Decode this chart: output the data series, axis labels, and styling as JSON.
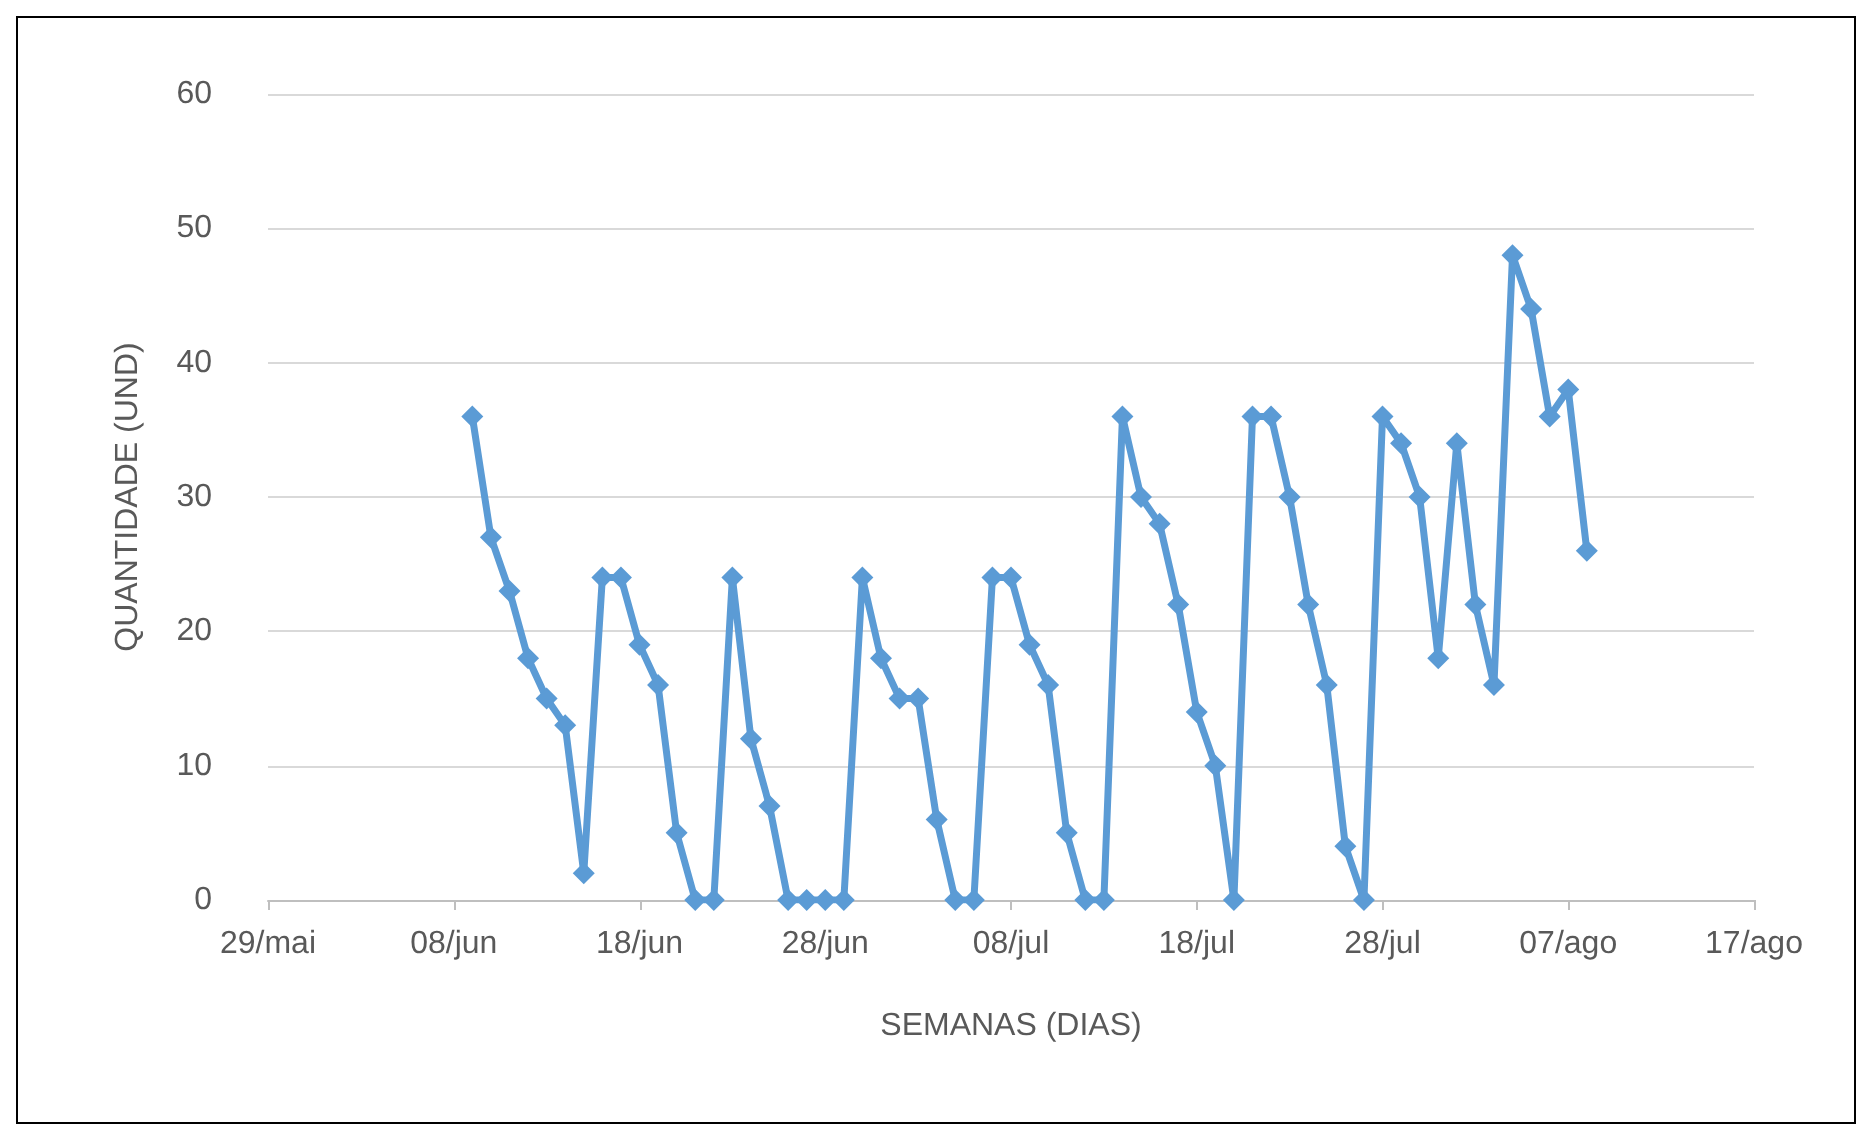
{
  "chart_data": {
    "type": "line",
    "xlabel": "SEMANAS (DIAS)",
    "ylabel": "QUANTIDADE (UND)",
    "x": [
      "--06-09",
      "--06-10",
      "--06-11",
      "--06-12",
      "--06-13",
      "--06-14",
      "--06-15",
      "--06-16",
      "--06-17",
      "--06-18",
      "--06-19",
      "--06-20",
      "--06-21",
      "--06-22",
      "--06-23",
      "--06-24",
      "--06-25",
      "--06-26",
      "--06-27",
      "--06-28",
      "--06-29",
      "--06-30",
      "--07-01",
      "--07-02",
      "--07-03",
      "--07-04",
      "--07-05",
      "--07-06",
      "--07-07",
      "--07-08",
      "--07-09",
      "--07-10",
      "--07-11",
      "--07-12",
      "--07-13",
      "--07-14",
      "--07-15",
      "--07-16",
      "--07-17",
      "--07-18",
      "--07-19",
      "--07-20",
      "--07-21",
      "--07-22",
      "--07-23",
      "--07-24",
      "--07-25",
      "--07-26",
      "--07-27",
      "--07-28",
      "--07-29",
      "--07-30",
      "--07-31",
      "--08-01",
      "--08-02",
      "--08-03",
      "--08-04",
      "--08-05",
      "--08-06",
      "--08-07",
      "--08-08"
    ],
    "series": [
      {
        "color": "#5b9bd5",
        "values": [
          36,
          27,
          23,
          18,
          15,
          13,
          2,
          24,
          24,
          19,
          16,
          5,
          0,
          0,
          24,
          12,
          7,
          0,
          0,
          0,
          0,
          24,
          18,
          15,
          15,
          6,
          0,
          0,
          24,
          24,
          19,
          16,
          5,
          0,
          0,
          36,
          30,
          28,
          22,
          14,
          10,
          0,
          36,
          36,
          30,
          22,
          16,
          4,
          0,
          36,
          34,
          30,
          18,
          34,
          22,
          16,
          48,
          44,
          36,
          38,
          26
        ]
      }
    ],
    "xlim": [
      "--05-29",
      "--08-17"
    ],
    "xticks": [
      {
        "value": "--05-29",
        "label": "29/mai"
      },
      {
        "value": "--06-08",
        "label": "08/jun"
      },
      {
        "value": "--06-18",
        "label": "18/jun"
      },
      {
        "value": "--06-28",
        "label": "28/jun"
      },
      {
        "value": "--07-08",
        "label": "08/jul"
      },
      {
        "value": "--07-18",
        "label": "18/jul"
      },
      {
        "value": "--07-28",
        "label": "28/jul"
      },
      {
        "value": "--08-07",
        "label": "07/ago"
      },
      {
        "value": "--08-17",
        "label": "17/ago"
      }
    ],
    "ylim": [
      0,
      60
    ],
    "yticks": [
      0,
      10,
      20,
      30,
      40,
      50,
      60
    ],
    "grid": "y",
    "marker": "diamond",
    "line_style": "solid"
  }
}
